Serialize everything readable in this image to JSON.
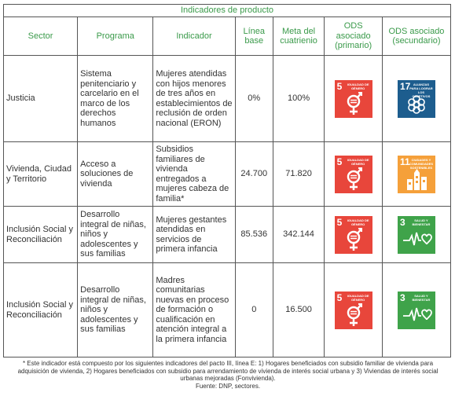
{
  "table": {
    "title": "Indicadores de producto",
    "headers": [
      "Sector",
      "Programa",
      "Indicador",
      "Línea base",
      "Meta del cuatrienio",
      "ODS asociado (primario)",
      "ODS asociado (secundario)"
    ],
    "rows": [
      {
        "sector": "Justicia",
        "programa": "Sistema penitenciario y carcelario en el marco de los derechos humanos",
        "indicador": "Mujeres atendidas con hijos menores de tres años en establecimientos de reclusión de orden nacional (ERON)",
        "linea_base": "0%",
        "meta": "100%",
        "ods_primario": {
          "number": "5",
          "caption": "IGUALDAD DE GÉNERO",
          "icon": "gender-equality-icon",
          "color": "#e8463b"
        },
        "ods_secundario": {
          "number": "17",
          "caption": "ALIANZAS PARA LOGRAR LOS OBJETIVOS",
          "icon": "partnership-flower-icon",
          "color": "#1d5d8e"
        }
      },
      {
        "sector": "Vivienda, Ciudad y Territorio",
        "programa": "Acceso a soluciones de vivienda",
        "indicador": "Subsidios familiares de vivienda entregados a mujeres cabeza de familia*",
        "linea_base": "24.700",
        "meta": "71.820",
        "ods_primario": {
          "number": "5",
          "caption": "IGUALDAD DE GÉNERO",
          "icon": "gender-equality-icon",
          "color": "#e8463b"
        },
        "ods_secundario": {
          "number": "11",
          "caption": "CIUDADES Y COMUNIDADES SOSTENIBLES",
          "icon": "city-buildings-icon",
          "color": "#f5a03a"
        }
      },
      {
        "sector": "Inclusión Social y Reconciliación",
        "programa": "Desarrollo integral de niñas, niños y adolescentes y sus familias",
        "indicador": "Mujeres gestantes atendidas en servicios de primera infancia",
        "linea_base": "85.536",
        "meta": "342.144",
        "ods_primario": {
          "number": "5",
          "caption": "IGUALDAD DE GÉNERO",
          "icon": "gender-equality-icon",
          "color": "#e8463b"
        },
        "ods_secundario": {
          "number": "3",
          "caption": "SALUD Y BIENESTAR",
          "icon": "heartbeat-icon",
          "color": "#3fa34a"
        }
      },
      {
        "sector": "Inclusión Social y Reconciliación",
        "programa": "Desarrollo integral de niñas, niños y adolescentes y sus familias",
        "indicador": "Madres comunitarias nuevas en proceso de formación o cualificación en atención integral a la primera infancia",
        "linea_base": "0",
        "meta": "16.500",
        "ods_primario": {
          "number": "5",
          "caption": "IGUALDAD DE GÉNERO",
          "icon": "gender-equality-icon",
          "color": "#e8463b"
        },
        "ods_secundario": {
          "number": "3",
          "caption": "SALUD Y BIENESTAR",
          "icon": "heartbeat-icon",
          "color": "#3fa34a"
        }
      }
    ]
  },
  "footnote": "* Este indicador está compuesto por los siguientes indicadores del pacto III, línea E: 1) Hogares beneficiados con subsidio familiar de vivienda para adquisición de vivienda, 2) Hogares beneficiados con subsidio para arrendamiento de vivienda de interés social urbana y 3) Viviendas de interés social urbanas mejoradas (Fonvivienda).",
  "source": "Fuente: DNP, sectores."
}
